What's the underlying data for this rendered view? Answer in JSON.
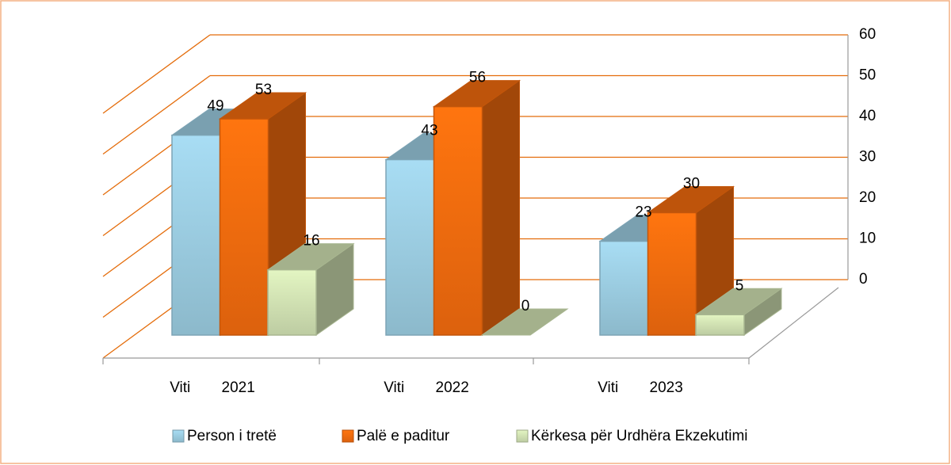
{
  "chart_data": {
    "type": "bar3d",
    "categories": [
      "Viti 2021",
      "Viti 2022",
      "Viti 2023"
    ],
    "series": [
      {
        "name": "Person i tretë",
        "color": "#9ccde2",
        "values": [
          49,
          43,
          23
        ]
      },
      {
        "name": "Palë e paditur",
        "color": "#f46c0e",
        "values": [
          53,
          56,
          30
        ]
      },
      {
        "name": "Kërkesa për Urdhëra Ekzekutimi",
        "color": "#d2e3b4",
        "values": [
          16,
          0,
          5
        ]
      }
    ],
    "ylim": [
      0,
      60
    ],
    "yticks": [
      0,
      10,
      20,
      30,
      40,
      50,
      60
    ],
    "grid": true,
    "legend": "bottom"
  }
}
